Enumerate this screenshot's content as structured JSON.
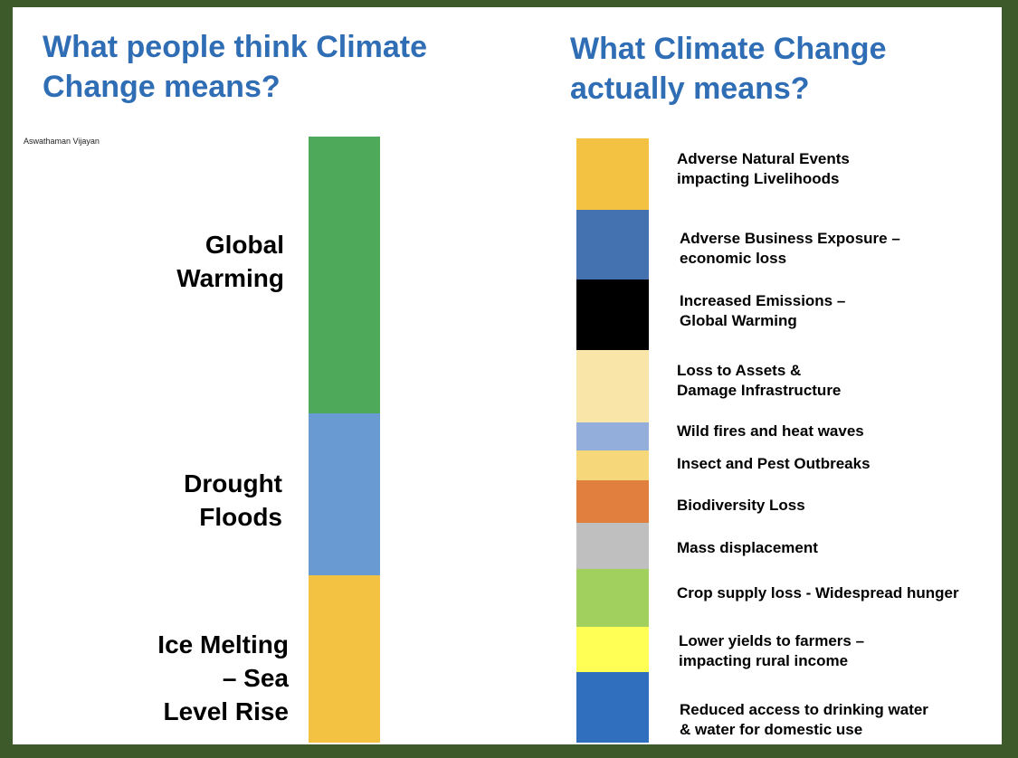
{
  "left_panel": {
    "title_line1": "What people think Climate",
    "title_line2": "Change means?",
    "credit": "Aswathaman Vijayan",
    "segments": [
      {
        "name": "global-warming",
        "color": "#4eaa5a",
        "lines": [
          "Global",
          "Warming"
        ]
      },
      {
        "name": "drought-floods",
        "color": "#6a9ad2",
        "lines": [
          "Drought",
          "Floods"
        ]
      },
      {
        "name": "ice-melting",
        "color": "#f4c242",
        "lines": [
          "Ice Melting",
          "– Sea",
          "Level Rise"
        ]
      }
    ]
  },
  "right_panel": {
    "title_line1": "What Climate Change",
    "title_line2": "actually means?",
    "segments": [
      {
        "name": "adverse-natural-events",
        "color": "#f4c242",
        "lines": [
          "Adverse Natural Events",
          "impacting Livelihoods"
        ]
      },
      {
        "name": "adverse-business-exposure",
        "color": "#4472b0",
        "lines": [
          "Adverse Business Exposure –",
          "economic loss"
        ]
      },
      {
        "name": "increased-emissions",
        "color": "#000000",
        "lines": [
          "Increased Emissions –",
          "Global Warming"
        ]
      },
      {
        "name": "loss-to-assets",
        "color": "#f9e5a8",
        "lines": [
          "Loss to Assets &",
          "Damage Infrastructure"
        ]
      },
      {
        "name": "wild-fires",
        "color": "#94aedc",
        "lines": [
          "Wild fires and heat waves"
        ]
      },
      {
        "name": "insect-pest",
        "color": "#f6d87a",
        "lines": [
          "Insect and Pest Outbreaks"
        ]
      },
      {
        "name": "biodiversity-loss",
        "color": "#e07f3e",
        "lines": [
          "Biodiversity Loss"
        ]
      },
      {
        "name": "mass-displacement",
        "color": "#bfbfbf",
        "lines": [
          "Mass displacement"
        ]
      },
      {
        "name": "crop-supply-loss",
        "color": "#a2d05f",
        "lines": [
          "Crop supply loss - Widespread hunger"
        ]
      },
      {
        "name": "lower-yields",
        "color": "#ffff55",
        "lines": [
          "Lower yields to farmers –",
          "impacting rural income"
        ]
      },
      {
        "name": "reduced-water-access",
        "color": "#2f6fbd",
        "lines": [
          "Reduced access to drinking water",
          "& water for domestic use"
        ]
      }
    ]
  }
}
